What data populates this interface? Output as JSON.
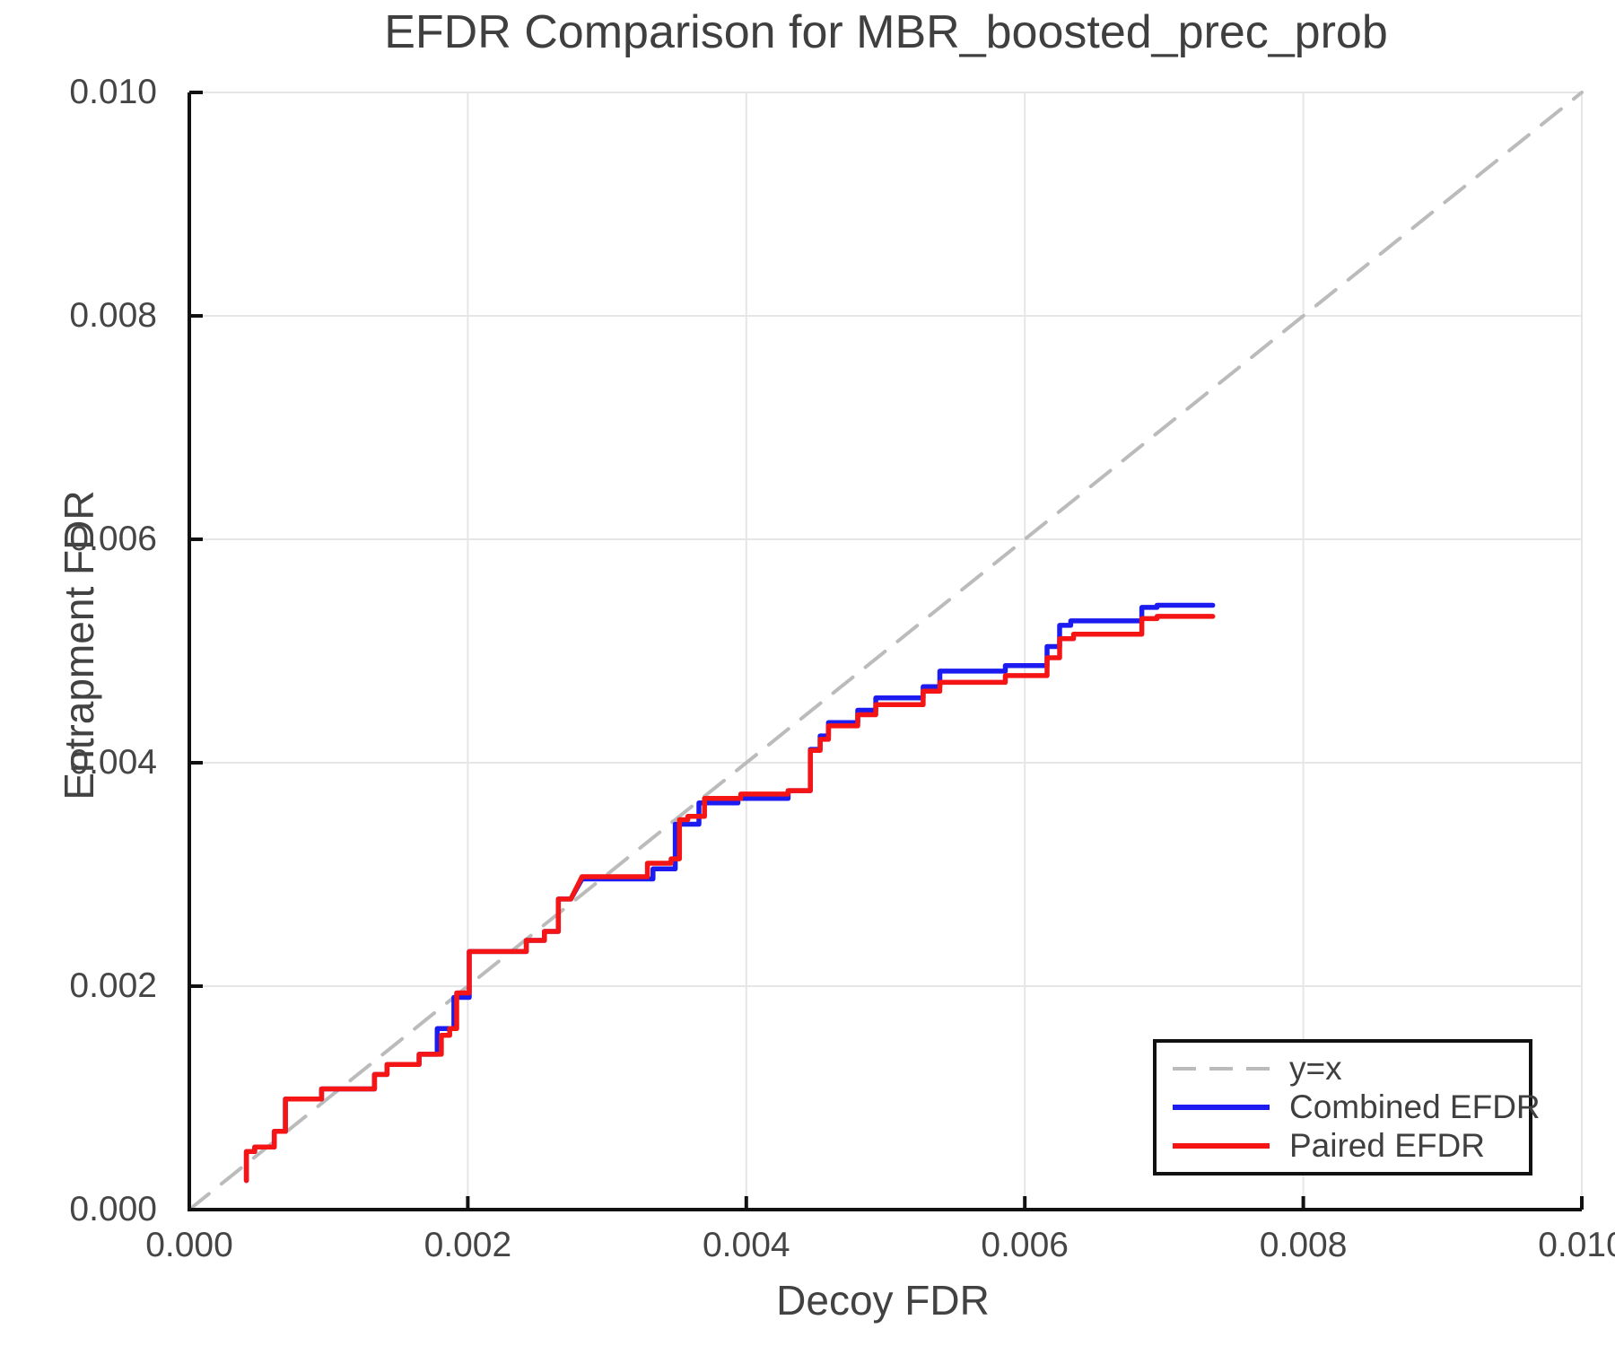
{
  "title": "EFDR Comparison for MBR_boosted_prec_prob",
  "axes": {
    "xlabel": "Decoy FDR",
    "ylabel": "Entrapment FDR",
    "x_ticks": [
      {
        "value": 0.0,
        "label": "0.000"
      },
      {
        "value": 0.002,
        "label": "0.002"
      },
      {
        "value": 0.004,
        "label": "0.004"
      },
      {
        "value": 0.006,
        "label": "0.006"
      },
      {
        "value": 0.008,
        "label": "0.008"
      },
      {
        "value": 0.01,
        "label": "0.010"
      }
    ],
    "y_ticks": [
      {
        "value": 0.0,
        "label": "0.000"
      },
      {
        "value": 0.002,
        "label": "0.002"
      },
      {
        "value": 0.004,
        "label": "0.004"
      },
      {
        "value": 0.006,
        "label": "0.006"
      },
      {
        "value": 0.008,
        "label": "0.008"
      },
      {
        "value": 0.01,
        "label": "0.010"
      }
    ],
    "grid": true
  },
  "colors": {
    "grid": "#e6e6e6",
    "spine": "#111111",
    "tick_text": "#454545",
    "title_text": "#3f3f3f",
    "background": "#ffffff",
    "reference_line": "#bbbbbb",
    "combined": "#1c1cf0",
    "paired": "#f51515"
  },
  "legend": {
    "position": "lower right",
    "items": [
      {
        "label": "y=x",
        "color": "#bbbbbb",
        "style": "dashed"
      },
      {
        "label": "Combined EFDR",
        "color": "#1c1cf0",
        "style": "solid"
      },
      {
        "label": "Paired EFDR",
        "color": "#f51515",
        "style": "solid"
      }
    ]
  },
  "chart_data": {
    "type": "line",
    "title": "EFDR Comparison for MBR_boosted_prec_prob",
    "xlabel": "Decoy FDR",
    "ylabel": "Entrapment FDR",
    "xlim": [
      0,
      0.01
    ],
    "ylim": [
      0,
      0.01
    ],
    "grid": true,
    "legend_position": "lower right",
    "series": [
      {
        "name": "y=x",
        "color": "#bbbbbb",
        "style": "dashed",
        "width": 4,
        "points": [
          [
            0,
            0
          ],
          [
            0.01,
            0.01
          ]
        ]
      },
      {
        "name": "Combined EFDR",
        "color": "#1c1cf0",
        "style": "solid",
        "width": 5.5,
        "points": [
          [
            0.00041,
            0.00026
          ],
          [
            0.00041,
            0.00052
          ],
          [
            0.00047,
            0.00052
          ],
          [
            0.00047,
            0.00056
          ],
          [
            0.00061,
            0.00056
          ],
          [
            0.00061,
            0.0007
          ],
          [
            0.00069,
            0.0007
          ],
          [
            0.00069,
            0.00099
          ],
          [
            0.00095,
            0.00099
          ],
          [
            0.00095,
            0.00108
          ],
          [
            0.00133,
            0.00108
          ],
          [
            0.00133,
            0.00121
          ],
          [
            0.00142,
            0.00121
          ],
          [
            0.00142,
            0.0013
          ],
          [
            0.00165,
            0.0013
          ],
          [
            0.00165,
            0.00139
          ],
          [
            0.00178,
            0.00139
          ],
          [
            0.00178,
            0.00162
          ],
          [
            0.0019,
            0.00162
          ],
          [
            0.0019,
            0.0019
          ],
          [
            0.00201,
            0.0019
          ],
          [
            0.00201,
            0.00231
          ],
          [
            0.00242,
            0.00231
          ],
          [
            0.00242,
            0.00241
          ],
          [
            0.00255,
            0.00241
          ],
          [
            0.00255,
            0.00249
          ],
          [
            0.00265,
            0.00249
          ],
          [
            0.00265,
            0.00278
          ],
          [
            0.00274,
            0.00278
          ],
          [
            0.00282,
            0.00296
          ],
          [
            0.00333,
            0.00296
          ],
          [
            0.00333,
            0.00305
          ],
          [
            0.00349,
            0.00305
          ],
          [
            0.00349,
            0.00345
          ],
          [
            0.00366,
            0.00345
          ],
          [
            0.00366,
            0.00364
          ],
          [
            0.00394,
            0.00364
          ],
          [
            0.00394,
            0.00368
          ],
          [
            0.0043,
            0.00368
          ],
          [
            0.0043,
            0.00375
          ],
          [
            0.00446,
            0.00375
          ],
          [
            0.00446,
            0.00412
          ],
          [
            0.00453,
            0.00412
          ],
          [
            0.00453,
            0.00424
          ],
          [
            0.00459,
            0.00424
          ],
          [
            0.00459,
            0.00436
          ],
          [
            0.0048,
            0.00436
          ],
          [
            0.0048,
            0.00447
          ],
          [
            0.00493,
            0.00447
          ],
          [
            0.00493,
            0.00458
          ],
          [
            0.00527,
            0.00458
          ],
          [
            0.00527,
            0.00468
          ],
          [
            0.00539,
            0.00468
          ],
          [
            0.00539,
            0.00482
          ],
          [
            0.00586,
            0.00482
          ],
          [
            0.00586,
            0.00487
          ],
          [
            0.00616,
            0.00487
          ],
          [
            0.00616,
            0.00504
          ],
          [
            0.00625,
            0.00504
          ],
          [
            0.00625,
            0.00523
          ],
          [
            0.00633,
            0.00523
          ],
          [
            0.00633,
            0.00527
          ],
          [
            0.00684,
            0.00527
          ],
          [
            0.00684,
            0.00539
          ],
          [
            0.00695,
            0.00539
          ],
          [
            0.00695,
            0.00541
          ],
          [
            0.00735,
            0.00541
          ]
        ]
      },
      {
        "name": "Paired EFDR",
        "color": "#f51515",
        "style": "solid",
        "width": 5.5,
        "points": [
          [
            0.00041,
            0.00026
          ],
          [
            0.00041,
            0.00052
          ],
          [
            0.00047,
            0.00052
          ],
          [
            0.00047,
            0.00056
          ],
          [
            0.00061,
            0.00056
          ],
          [
            0.00061,
            0.0007
          ],
          [
            0.00069,
            0.0007
          ],
          [
            0.00069,
            0.00099
          ],
          [
            0.00095,
            0.00099
          ],
          [
            0.00095,
            0.00108
          ],
          [
            0.00133,
            0.00108
          ],
          [
            0.00133,
            0.00121
          ],
          [
            0.00142,
            0.00121
          ],
          [
            0.00142,
            0.0013
          ],
          [
            0.00165,
            0.0013
          ],
          [
            0.00165,
            0.00139
          ],
          [
            0.00181,
            0.00139
          ],
          [
            0.00181,
            0.00156
          ],
          [
            0.00187,
            0.00156
          ],
          [
            0.00187,
            0.00162
          ],
          [
            0.00192,
            0.00162
          ],
          [
            0.00192,
            0.00194
          ],
          [
            0.00201,
            0.00194
          ],
          [
            0.00201,
            0.00231
          ],
          [
            0.00242,
            0.00231
          ],
          [
            0.00242,
            0.00241
          ],
          [
            0.00255,
            0.00241
          ],
          [
            0.00255,
            0.00249
          ],
          [
            0.00265,
            0.00249
          ],
          [
            0.00265,
            0.00278
          ],
          [
            0.00274,
            0.00278
          ],
          [
            0.00282,
            0.00298
          ],
          [
            0.00329,
            0.00298
          ],
          [
            0.00329,
            0.0031
          ],
          [
            0.00346,
            0.0031
          ],
          [
            0.00346,
            0.00314
          ],
          [
            0.00352,
            0.00314
          ],
          [
            0.00352,
            0.00349
          ],
          [
            0.00358,
            0.00349
          ],
          [
            0.00358,
            0.00352
          ],
          [
            0.0037,
            0.00352
          ],
          [
            0.0037,
            0.00368
          ],
          [
            0.00396,
            0.00368
          ],
          [
            0.00396,
            0.00372
          ],
          [
            0.0043,
            0.00372
          ],
          [
            0.0043,
            0.00375
          ],
          [
            0.00446,
            0.00375
          ],
          [
            0.00446,
            0.00411
          ],
          [
            0.00453,
            0.00411
          ],
          [
            0.00453,
            0.00421
          ],
          [
            0.00459,
            0.00421
          ],
          [
            0.00459,
            0.00433
          ],
          [
            0.0048,
            0.00433
          ],
          [
            0.0048,
            0.00443
          ],
          [
            0.00493,
            0.00443
          ],
          [
            0.00493,
            0.00452
          ],
          [
            0.00527,
            0.00452
          ],
          [
            0.00527,
            0.00464
          ],
          [
            0.00539,
            0.00464
          ],
          [
            0.00539,
            0.00472
          ],
          [
            0.00586,
            0.00472
          ],
          [
            0.00586,
            0.00478
          ],
          [
            0.00616,
            0.00478
          ],
          [
            0.00616,
            0.00494
          ],
          [
            0.00625,
            0.00494
          ],
          [
            0.00625,
            0.00511
          ],
          [
            0.00635,
            0.00511
          ],
          [
            0.00635,
            0.00515
          ],
          [
            0.00684,
            0.00515
          ],
          [
            0.00684,
            0.00529
          ],
          [
            0.00695,
            0.00529
          ],
          [
            0.00695,
            0.00531
          ],
          [
            0.00735,
            0.00531
          ]
        ]
      }
    ]
  }
}
